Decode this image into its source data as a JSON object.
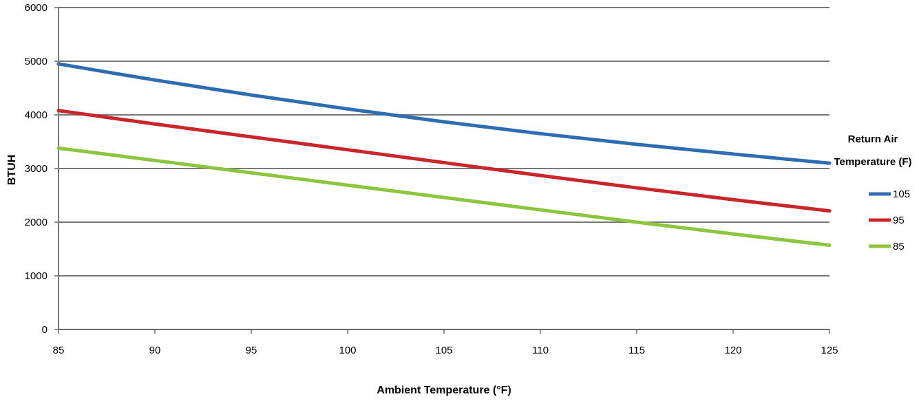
{
  "chart_data": {
    "type": "line",
    "title": "",
    "xlabel": "Ambient Temperature (°F)",
    "ylabel": "BTUH",
    "xlim": [
      85,
      125
    ],
    "ylim": [
      0,
      6000
    ],
    "x_ticks": [
      "85",
      "90",
      "95",
      "100",
      "105",
      "110",
      "115",
      "120",
      "125"
    ],
    "y_ticks": [
      "0",
      "1000",
      "2000",
      "3000",
      "4000",
      "5000",
      "6000"
    ],
    "grid": true,
    "legend": {
      "title_line1": "Return Air",
      "title_line2": "Temperature (F)",
      "placement": "right"
    },
    "x": [
      85,
      90,
      95,
      100,
      105,
      110,
      115,
      120,
      125
    ],
    "series": [
      {
        "name": "105",
        "color": "#2e6db4",
        "values": [
          4950,
          4650,
          4370,
          4110,
          3870,
          3650,
          3450,
          3270,
          3100
        ]
      },
      {
        "name": "95",
        "color": "#c9262c",
        "values": [
          4080,
          3830,
          3590,
          3350,
          3110,
          2870,
          2640,
          2420,
          2210
        ]
      },
      {
        "name": "85",
        "color": "#8cc63f",
        "values": [
          3380,
          3150,
          2920,
          2690,
          2460,
          2230,
          2000,
          1780,
          1570
        ]
      }
    ]
  }
}
